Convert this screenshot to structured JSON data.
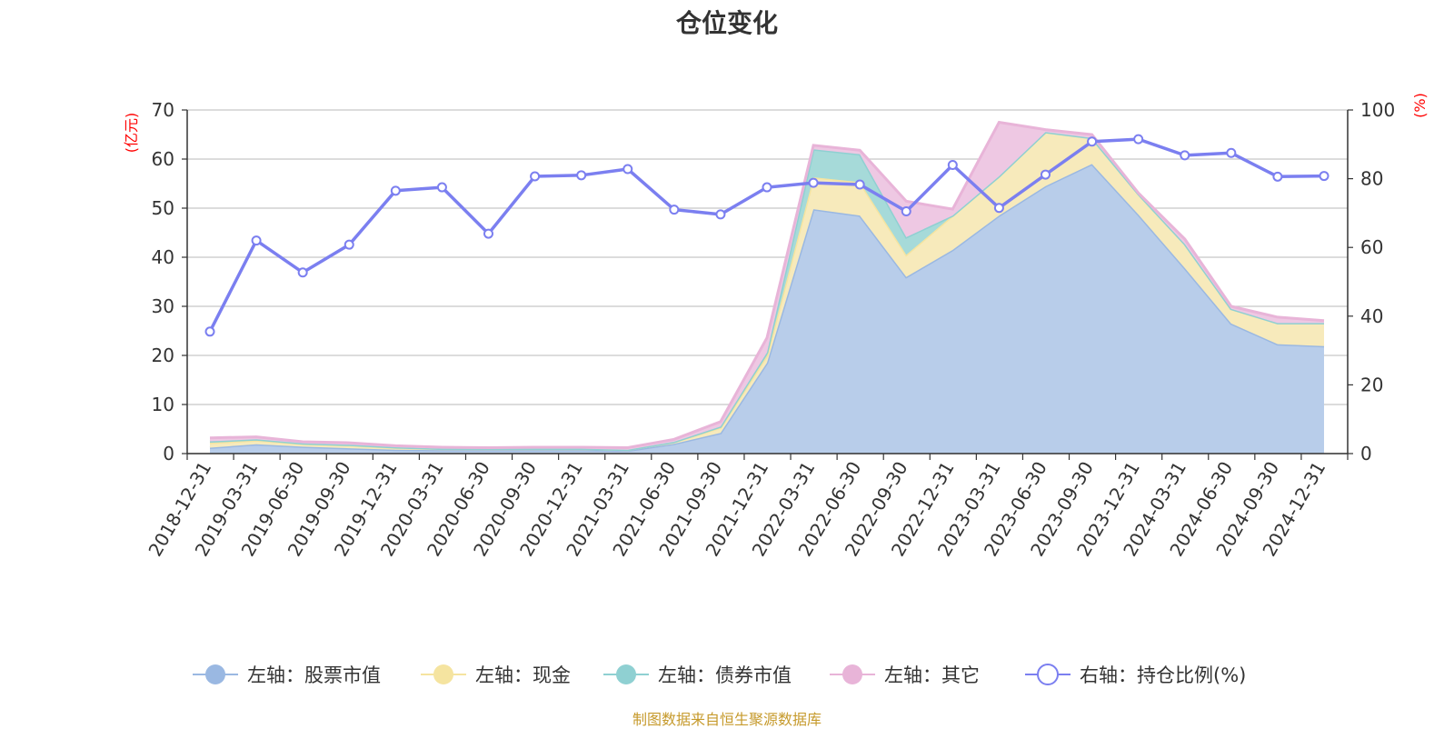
{
  "chart_data": {
    "type": "area",
    "title": "仓位变化",
    "categories": [
      "2018-12-31",
      "2019-03-31",
      "2019-06-30",
      "2019-09-30",
      "2019-12-31",
      "2020-03-31",
      "2020-06-30",
      "2020-09-30",
      "2020-12-31",
      "2021-03-31",
      "2021-06-30",
      "2021-09-30",
      "2021-12-31",
      "2022-03-31",
      "2022-06-30",
      "2022-09-30",
      "2022-12-31",
      "2023-03-31",
      "2023-06-30",
      "2023-09-30",
      "2023-12-31",
      "2024-03-31",
      "2024-06-30",
      "2024-09-30",
      "2024-12-31"
    ],
    "left_axis": {
      "unit": "(亿元)",
      "ylim": [
        0,
        70
      ],
      "ticks": [
        "0",
        "10",
        "20",
        "30",
        "40",
        "50",
        "60",
        "70"
      ]
    },
    "right_axis": {
      "unit": "(%)",
      "ylim": [
        0,
        100
      ],
      "ticks": [
        "0",
        "20",
        "40",
        "60",
        "80",
        "100"
      ]
    },
    "stacked_series": [
      {
        "name": "左轴：股票市值",
        "color": "#9ab8e2",
        "fill": "#b8cdea",
        "values": [
          1.2,
          1.9,
          1.4,
          1.1,
          0.8,
          0.7,
          0.7,
          0.7,
          0.7,
          0.6,
          2.0,
          4.2,
          18.5,
          49.8,
          48.5,
          36.0,
          41.5,
          48.5,
          54.5,
          59.0,
          48.7,
          37.8,
          26.5,
          22.3,
          21.9
        ]
      },
      {
        "name": "左轴：现金",
        "color": "#f5e4a0",
        "fill": "#f7eabb",
        "values": [
          1.0,
          0.8,
          0.6,
          0.6,
          0.4,
          0.3,
          0.3,
          0.3,
          0.3,
          0.2,
          0.4,
          1.1,
          1.5,
          6.5,
          6.8,
          4.5,
          7.0,
          8.0,
          11.0,
          5.3,
          4.2,
          4.9,
          3.0,
          4.3,
          4.7
        ]
      },
      {
        "name": "左轴：债券市值",
        "color": "#8fd0d2",
        "fill": "#a6dad9",
        "values": [
          0.3,
          0.2,
          0.1,
          0.1,
          0.1,
          0.0,
          0.0,
          0.0,
          0.0,
          0.0,
          0.0,
          0.2,
          0.6,
          5.7,
          5.7,
          3.6,
          0.0,
          0.0,
          0.0,
          0.0,
          0.0,
          0.0,
          0.0,
          0.0,
          0.0
        ]
      },
      {
        "name": "左轴：其它",
        "color": "#e8b4d8",
        "fill": "#eec8e3",
        "values": [
          0.7,
          0.5,
          0.3,
          0.4,
          0.3,
          0.3,
          0.2,
          0.3,
          0.3,
          0.4,
          0.5,
          1.0,
          3.0,
          0.8,
          0.8,
          7.3,
          1.3,
          11.0,
          0.5,
          0.7,
          0.2,
          1.0,
          0.5,
          1.2,
          0.5
        ]
      }
    ],
    "line_series": {
      "name": "右轴：持仓比例(%)",
      "color": "#7b7ff0",
      "values": [
        35.5,
        62.0,
        52.7,
        60.8,
        76.5,
        77.5,
        64.0,
        80.7,
        81.0,
        82.8,
        71.0,
        69.6,
        77.5,
        78.8,
        78.3,
        70.5,
        84.0,
        71.5,
        81.2,
        90.8,
        91.5,
        86.8,
        87.5,
        80.6,
        80.8
      ]
    },
    "grid": true,
    "legend_position": "bottom"
  },
  "source_note": "制图数据来自恒生聚源数据库"
}
